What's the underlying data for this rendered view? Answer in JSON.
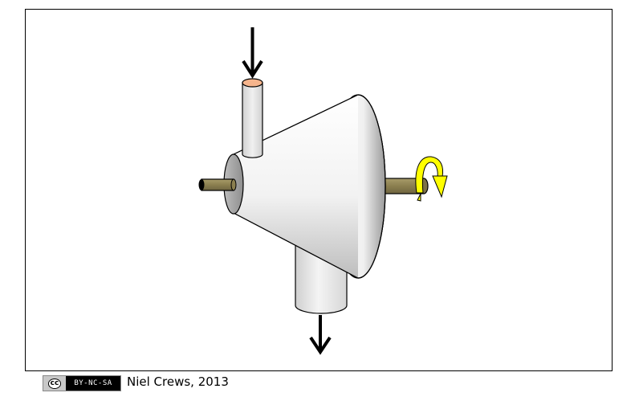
{
  "footer": {
    "license_symbol": "cc",
    "license_terms": "BY-NC-SA",
    "credit": "Niel Crews, 2013"
  },
  "diagram": {
    "colors": {
      "body_light": "#ffffff",
      "body_shade": "#bdbdbd",
      "shaft": "#8b7f4f",
      "inlet_top": "#f5b48c",
      "rotation_arrow": "#ffff00",
      "arrow": "#000000"
    },
    "icons": [
      "flow-in-arrow",
      "flow-out-arrow",
      "rotation-arrow"
    ]
  }
}
